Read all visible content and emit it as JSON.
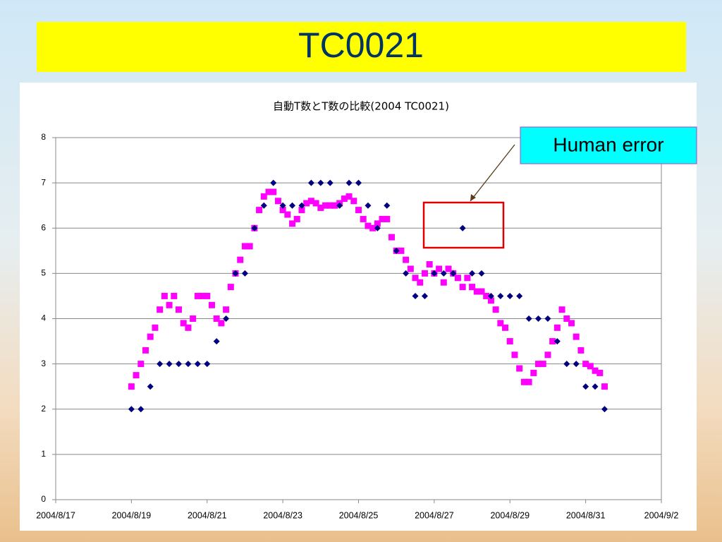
{
  "title": "TC0021",
  "chart_data": {
    "type": "scatter",
    "title": "自動T数とT数の比較(2004 TC0021)",
    "annotations": [
      "Human error"
    ],
    "xlim": [
      0,
      16
    ],
    "xticks": [
      {
        "value": 0,
        "label": "2004/8/17"
      },
      {
        "value": 2,
        "label": "2004/8/19"
      },
      {
        "value": 4,
        "label": "2004/8/21"
      },
      {
        "value": 6,
        "label": "2004/8/23"
      },
      {
        "value": 8,
        "label": "2004/8/25"
      },
      {
        "value": 10,
        "label": "2004/8/27"
      },
      {
        "value": 12,
        "label": "2004/8/29"
      },
      {
        "value": 14,
        "label": "2004/8/31"
      },
      {
        "value": 16,
        "label": "2004/9/2"
      }
    ],
    "ylim": [
      0,
      8
    ],
    "yticks": [
      0,
      1,
      2,
      3,
      4,
      5,
      6,
      7,
      8
    ],
    "grid": true,
    "series": [
      {
        "color": "#ff00ff",
        "marker": "square",
        "x": [
          2,
          2.125,
          2.25,
          2.375,
          2.5,
          2.625,
          2.75,
          2.875,
          3,
          3.125,
          3.25,
          3.375,
          3.5,
          3.625,
          3.75,
          3.875,
          4,
          4.125,
          4.25,
          4.375,
          4.5,
          4.625,
          4.75,
          4.875,
          5,
          5.125,
          5.25,
          5.375,
          5.5,
          5.625,
          5.75,
          5.875,
          6,
          6.125,
          6.25,
          6.375,
          6.5,
          6.625,
          6.75,
          6.875,
          7,
          7.125,
          7.25,
          7.375,
          7.5,
          7.625,
          7.75,
          7.875,
          8,
          8.125,
          8.25,
          8.375,
          8.5,
          8.625,
          8.75,
          8.875,
          9,
          9.125,
          9.25,
          9.375,
          9.5,
          9.625,
          9.75,
          9.875,
          10,
          10.125,
          10.25,
          10.375,
          10.5,
          10.625,
          10.75,
          10.875,
          11,
          11.125,
          11.25,
          11.375,
          11.5,
          11.625,
          11.75,
          11.875,
          12,
          12.125,
          12.25,
          12.375,
          12.5,
          12.625,
          12.75,
          12.875,
          13,
          13.125,
          13.25,
          13.375,
          13.5,
          13.625,
          13.75,
          13.875,
          14,
          14.125,
          14.25,
          14.375,
          14.5
        ],
        "values": [
          2.5,
          2.75,
          3.0,
          3.3,
          3.6,
          3.8,
          4.2,
          4.5,
          4.3,
          4.5,
          4.2,
          3.9,
          3.8,
          4.0,
          4.5,
          4.5,
          4.5,
          4.3,
          4.0,
          3.9,
          4.2,
          4.7,
          5.0,
          5.3,
          5.6,
          5.6,
          6.0,
          6.4,
          6.7,
          6.8,
          6.8,
          6.6,
          6.4,
          6.3,
          6.1,
          6.2,
          6.4,
          6.55,
          6.6,
          6.55,
          6.45,
          6.5,
          6.5,
          6.5,
          6.55,
          6.65,
          6.7,
          6.6,
          6.4,
          6.2,
          6.05,
          6.0,
          6.1,
          6.2,
          6.2,
          5.8,
          5.5,
          5.5,
          5.3,
          5.1,
          4.9,
          4.8,
          5.0,
          5.2,
          5.0,
          5.1,
          4.8,
          5.1,
          5.0,
          4.9,
          4.7,
          4.9,
          4.7,
          4.6,
          4.6,
          4.5,
          4.4,
          4.2,
          3.9,
          3.8,
          3.5,
          3.2,
          2.9,
          2.6,
          2.6,
          2.8,
          3.0,
          3.0,
          3.2,
          3.5,
          3.8,
          4.2,
          4.0,
          3.9,
          3.6,
          3.3,
          3.0,
          2.95,
          2.85,
          2.8,
          2.5
        ]
      },
      {
        "color": "#000080",
        "marker": "diamond",
        "x": [
          2,
          2.25,
          2.5,
          2.75,
          3,
          3.25,
          3.5,
          3.75,
          4,
          4.25,
          4.5,
          4.75,
          5,
          5.25,
          5.5,
          5.75,
          6,
          6.25,
          6.5,
          6.75,
          7,
          7.25,
          7.5,
          7.75,
          8,
          8.25,
          8.5,
          8.75,
          9,
          9.25,
          9.5,
          9.75,
          10,
          10.25,
          10.5,
          10.75,
          11,
          11.25,
          11.5,
          11.75,
          12,
          12.25,
          12.5,
          12.75,
          13,
          13.25,
          13.5,
          13.75,
          14,
          14.25,
          14.5
        ],
        "values": [
          2,
          2,
          2.5,
          3,
          3,
          3,
          3,
          3,
          3,
          3.5,
          4,
          5,
          5,
          6,
          6.5,
          7,
          6.5,
          6.5,
          6.5,
          7,
          7,
          7,
          6.5,
          7,
          7,
          6.5,
          6,
          6.5,
          5.5,
          5,
          4.5,
          4.5,
          5,
          5,
          5,
          6,
          5,
          5,
          4.5,
          4.5,
          4.5,
          4.5,
          4,
          4,
          4,
          3.5,
          3,
          3,
          2.5,
          2.5,
          2
        ]
      }
    ]
  }
}
